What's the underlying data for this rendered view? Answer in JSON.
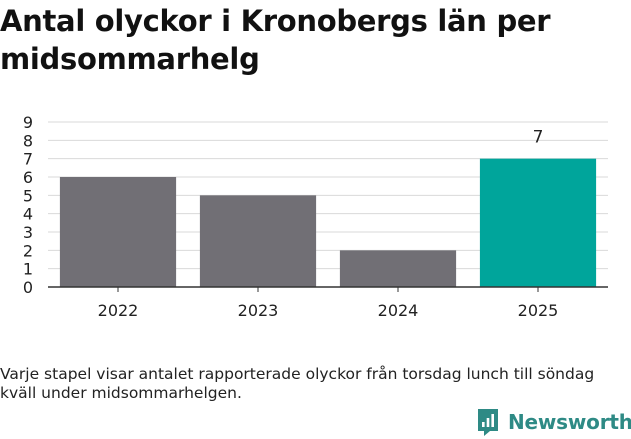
{
  "title": "Antal olyckor i Kronobergs län per midsommarhelg",
  "caption": "Varje stapel visar antalet rapporterade olyckor från torsdag lunch till söndag kväll under midsommarhelgen.",
  "brand": {
    "name": "Newsworthy",
    "icon": "newsworthy-logo-icon",
    "color": "#2e8a85"
  },
  "chart_data": {
    "type": "bar",
    "title": "Antal olyckor i Kronobergs län per midsommarhelg",
    "categories": [
      "2022",
      "2023",
      "2024",
      "2025"
    ],
    "values": [
      6,
      5,
      2,
      7
    ],
    "colors": [
      "#716f75",
      "#716f75",
      "#716f75",
      "#00a59b"
    ],
    "highlight_index": 3,
    "data_labels": [
      "",
      "",
      "",
      "7"
    ],
    "ylim": [
      0,
      9
    ],
    "yticks": [
      "0",
      "1",
      "2",
      "3",
      "4",
      "5",
      "6",
      "7",
      "8",
      "9"
    ],
    "xlabel": "",
    "ylabel": "",
    "grid": true,
    "legend": "none",
    "gridline_color": "#d9d9d9",
    "axis_color": "#333333"
  }
}
